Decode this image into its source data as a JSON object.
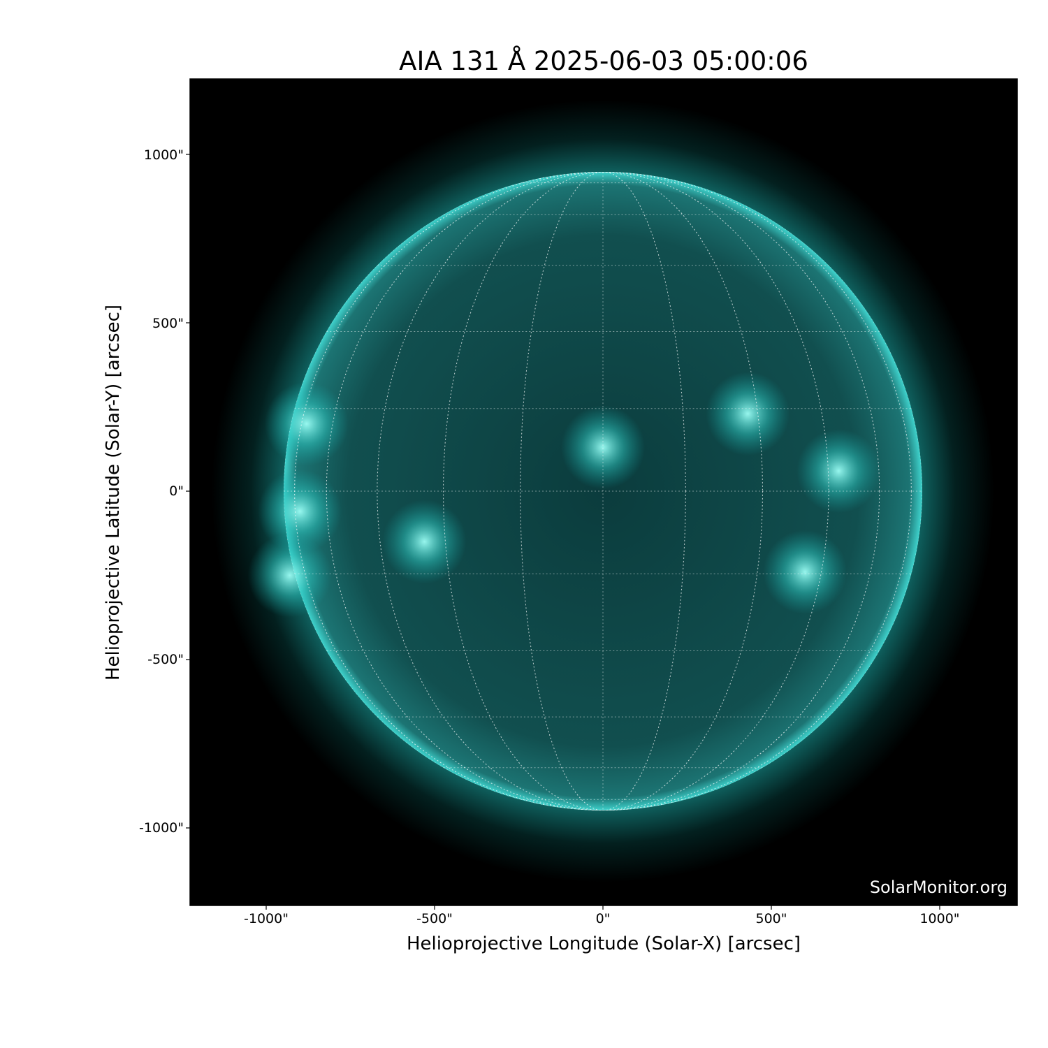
{
  "chart_data": {
    "type": "image",
    "title": "AIA 131 Å 2025-06-03 05:00:06",
    "xlabel": "Helioprojective Longitude (Solar-X) [arcsec]",
    "ylabel": "Helioprojective Latitude (Solar-Y) [arcsec]",
    "xlim": [
      -1226,
      1230
    ],
    "ylim": [
      -1226,
      1230
    ],
    "x_ticks": [
      -1000,
      -500,
      0,
      500,
      1000
    ],
    "y_ticks": [
      -1000,
      -500,
      0,
      500,
      1000
    ],
    "x_tick_labels": [
      "-1000\"",
      "-500\"",
      "0\"",
      "500\"",
      "1000\""
    ],
    "y_tick_labels": [
      "-1000\"",
      "-500\"",
      "0\"",
      "500\"",
      "1000\""
    ],
    "solar_radius_arcsec": 948,
    "grid_spacing_deg": 15,
    "colors": {
      "background": "#000000",
      "disk": "#0c4a4a",
      "limb": "#2fd6d0",
      "bright": "#8ffff5"
    },
    "active_regions_arcsec": [
      [
        0,
        130
      ],
      [
        430,
        230
      ],
      [
        700,
        60
      ],
      [
        600,
        -240
      ],
      [
        -880,
        200
      ],
      [
        -930,
        -250
      ],
      [
        -900,
        -60
      ],
      [
        -530,
        -150
      ]
    ],
    "watermark": "SolarMonitor.org"
  }
}
